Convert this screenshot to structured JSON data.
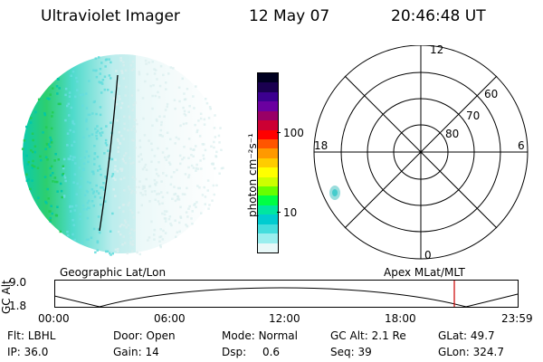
{
  "header": {
    "instrument": "Ultraviolet Imager",
    "date": "12 May 07",
    "time": "20:46:48 UT"
  },
  "colorbar": {
    "unit_label": "photon cm⁻²s⁻¹",
    "ticks": [
      "100",
      "10"
    ],
    "colors": [
      "#000020",
      "#1a0050",
      "#3c0090",
      "#6a00a0",
      "#990066",
      "#cc0033",
      "#ff0000",
      "#ff5500",
      "#ff9900",
      "#ffcc00",
      "#ffff00",
      "#ccff00",
      "#66ff00",
      "#00ff44",
      "#00e6a0",
      "#00ccd0",
      "#44dddd",
      "#99eeee",
      "#e8f8f8"
    ]
  },
  "polar_plot": {
    "mlt_labels": {
      "top": "12",
      "left": "18",
      "right": "6",
      "bottom": "0"
    },
    "lat_labels": [
      "60",
      "70",
      "80"
    ]
  },
  "timeline": {
    "ylabel": "GC Alt",
    "yticks": [
      "9.0",
      "1.8"
    ],
    "left_title": "Geographic Lat/Lon",
    "right_title": "Apex MLat/MLT",
    "xticks": [
      "00:00",
      "06:00",
      "12:00",
      "18:00",
      "23:59"
    ],
    "marker_color": "#cc0000"
  },
  "footer": {
    "row1": [
      {
        "label": "Flt:",
        "value": "LBHL"
      },
      {
        "label": "Door:",
        "value": "Open"
      },
      {
        "label": "Mode:",
        "value": "Normal"
      },
      {
        "label": "GC Alt:",
        "value": "2.1 Re"
      },
      {
        "label": "GLat:",
        "value": "49.7"
      }
    ],
    "row2": [
      {
        "label": "IP:",
        "value": "36.0"
      },
      {
        "label": "Gain:",
        "value": "14"
      },
      {
        "label": "Dsp:",
        "value": "0.6"
      },
      {
        "label": "Seq:",
        "value": "39"
      },
      {
        "label": "GLon:",
        "value": "324.7"
      }
    ]
  }
}
